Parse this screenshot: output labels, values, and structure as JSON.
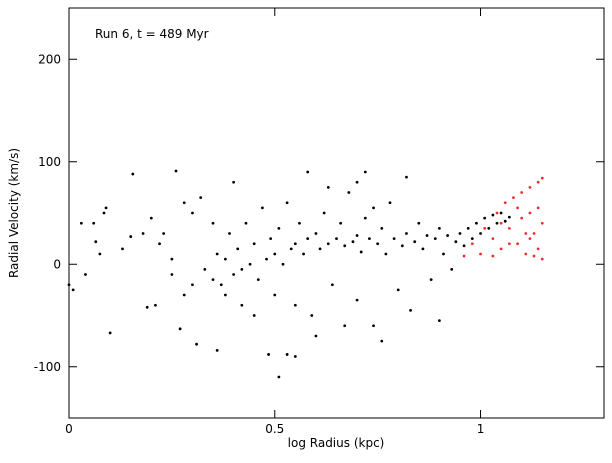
{
  "chart_data": {
    "type": "scatter",
    "annotation": "Run 6, t = 489 Myr",
    "xlabel": "log Radius (kpc)",
    "ylabel": "Radial Velocity (km/s)",
    "xlim": [
      0,
      1.3
    ],
    "ylim": [
      -150,
      250
    ],
    "xticks": [
      0,
      0.5,
      1
    ],
    "yticks": [
      -100,
      0,
      100,
      200
    ],
    "series": [
      {
        "color": "#000000",
        "x": [
          0.0,
          0.01,
          0.03,
          0.04,
          0.06,
          0.065,
          0.075,
          0.085,
          0.09,
          0.1,
          0.13,
          0.15,
          0.155,
          0.26,
          0.27,
          0.31,
          0.36,
          0.485,
          0.51,
          0.53,
          0.55,
          0.58,
          0.72,
          0.19,
          0.21,
          0.23,
          0.25,
          0.28,
          0.3,
          0.33,
          0.35,
          0.36,
          0.37,
          0.38,
          0.39,
          0.4,
          0.4,
          0.41,
          0.42,
          0.43,
          0.44,
          0.45,
          0.46,
          0.47,
          0.48,
          0.49,
          0.5,
          0.5,
          0.51,
          0.52,
          0.53,
          0.54,
          0.55,
          0.55,
          0.56,
          0.57,
          0.58,
          0.59,
          0.6,
          0.61,
          0.62,
          0.63,
          0.64,
          0.65,
          0.66,
          0.67,
          0.68,
          0.69,
          0.7,
          0.7,
          0.71,
          0.72,
          0.73,
          0.74,
          0.75,
          0.76,
          0.77,
          0.78,
          0.79,
          0.8,
          0.81,
          0.82,
          0.83,
          0.84,
          0.85,
          0.86,
          0.87,
          0.88,
          0.89,
          0.9,
          0.91,
          0.92,
          0.93,
          0.94,
          0.95,
          0.96,
          0.97,
          0.98,
          0.99,
          1.0,
          1.01,
          1.02,
          1.03,
          1.04,
          1.05,
          1.06,
          1.07,
          0.42,
          0.38,
          0.45,
          0.6,
          0.67,
          0.76,
          0.9,
          0.63,
          0.7,
          0.82,
          0.74,
          0.35,
          0.3,
          0.2,
          0.22,
          0.18,
          0.25,
          0.28,
          0.32
        ],
        "y": [
          -20,
          -25,
          40,
          -10,
          40,
          22,
          10,
          50,
          55,
          -67,
          15,
          27,
          88,
          91,
          -63,
          -78,
          -84,
          -88,
          -110,
          -88,
          -90,
          90,
          90,
          -42,
          -40,
          30,
          -10,
          60,
          -20,
          -5,
          -15,
          10,
          -20,
          5,
          30,
          -10,
          80,
          15,
          -5,
          40,
          0,
          20,
          -15,
          55,
          5,
          25,
          -30,
          10,
          35,
          0,
          60,
          15,
          -40,
          20,
          40,
          10,
          25,
          -50,
          30,
          15,
          50,
          20,
          -20,
          25,
          40,
          18,
          70,
          22,
          -35,
          28,
          12,
          45,
          25,
          -60,
          20,
          35,
          10,
          60,
          25,
          -25,
          18,
          30,
          -45,
          22,
          40,
          15,
          28,
          -15,
          25,
          35,
          10,
          28,
          -5,
          22,
          30,
          18,
          35,
          25,
          40,
          30,
          45,
          35,
          48,
          40,
          50,
          42,
          46,
          -40,
          -30,
          -50,
          -70,
          -60,
          -75,
          -55,
          75,
          80,
          85,
          55,
          40,
          50,
          45,
          20,
          30,
          5,
          -30,
          65
        ]
      },
      {
        "color": "#e8312f",
        "x": [
          0.96,
          0.98,
          1.0,
          1.01,
          1.03,
          1.04,
          1.05,
          1.06,
          1.07,
          1.08,
          1.09,
          1.1,
          1.1,
          1.11,
          1.12,
          1.12,
          1.13,
          1.14,
          1.14,
          1.15,
          1.15,
          1.15,
          1.13,
          1.11,
          1.09,
          1.07,
          1.05,
          1.03,
          1.12,
          1.14
        ],
        "y": [
          8,
          20,
          10,
          35,
          25,
          50,
          15,
          60,
          35,
          65,
          20,
          70,
          45,
          10,
          75,
          50,
          30,
          80,
          15,
          84,
          40,
          5,
          8,
          30,
          55,
          20,
          40,
          8,
          25,
          55
        ]
      }
    ]
  }
}
